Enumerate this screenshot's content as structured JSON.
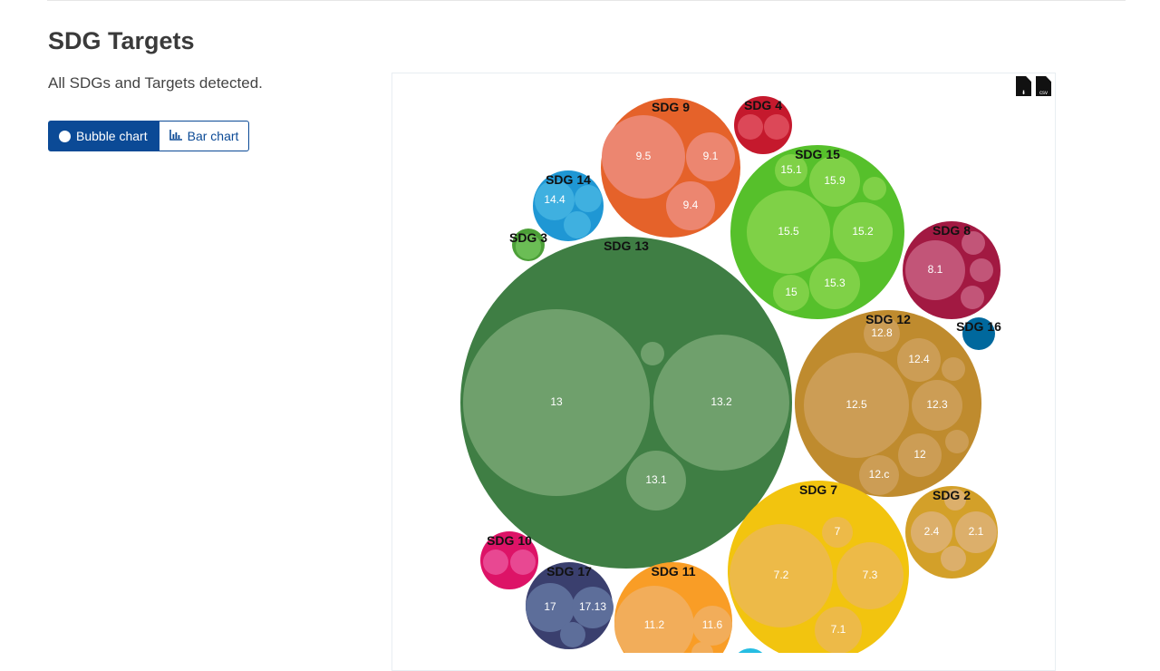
{
  "header": {
    "title": "SDG Targets",
    "subtitle": "All SDGs and Targets detected."
  },
  "view_toggle": {
    "bubble_label": "Bubble chart",
    "bar_label": "Bar chart",
    "selected": "Bubble chart"
  },
  "export": {
    "download_icon": "file-download-icon",
    "csv_icon": "file-csv-icon",
    "csv_text": "csv"
  },
  "bubbles": [
    {
      "name": "SDG 9",
      "color": "#e5622a",
      "inner_color": "#ec8670",
      "targets": [
        "9.5",
        "9.1",
        "9.4"
      ]
    },
    {
      "name": "SDG 4",
      "color": "#c5192d",
      "inner_color": "#dc4858",
      "targets": [
        "",
        ""
      ]
    },
    {
      "name": "SDG 15",
      "color": "#56c02b",
      "inner_color": "#7fd147",
      "targets": [
        "15.1",
        "15.9",
        "",
        "15.5",
        "15.2",
        "15",
        "15.3"
      ]
    },
    {
      "name": "SDG 14",
      "color": "#1f97d4",
      "inner_color": "#3fb0e0",
      "targets": [
        "14.4",
        "",
        ""
      ]
    },
    {
      "name": "SDG 3",
      "color": "#4c9f38",
      "inner_color": "#6bbd55",
      "targets": [
        ""
      ]
    },
    {
      "name": "SDG 13",
      "color": "#3f7e44",
      "inner_color": "#6fa06c",
      "targets": [
        "13",
        "13.2",
        "13.1",
        ""
      ]
    },
    {
      "name": "SDG 8",
      "color": "#a21942",
      "inner_color": "#c25578",
      "targets": [
        "8.1",
        "",
        "",
        ""
      ]
    },
    {
      "name": "SDG 16",
      "color": "#00689d",
      "inner_color": "#2a84bd",
      "targets": []
    },
    {
      "name": "SDG 12",
      "color": "#bf8b2e",
      "inner_color": "#cc9d55",
      "targets": [
        "12.8",
        "12.4",
        "12.5",
        "12.3",
        "12",
        "12.c",
        "",
        ""
      ]
    },
    {
      "name": "SDG 7",
      "color": "#f2c40f",
      "inner_color": "#edba48",
      "targets": [
        "7",
        "7.2",
        "7.3",
        "7.1"
      ]
    },
    {
      "name": "SDG 2",
      "color": "#d3a029",
      "inner_color": "#dcaf6b",
      "targets": [
        "2.4",
        "2.1",
        "",
        ""
      ]
    },
    {
      "name": "SDG 10",
      "color": "#dd1367",
      "inner_color": "#e84892",
      "targets": [
        "",
        ""
      ]
    },
    {
      "name": "SDG 17",
      "color": "#3a3f6e",
      "inner_color": "#5d6e9a",
      "targets": [
        "17",
        "17.13",
        ""
      ]
    },
    {
      "name": "SDG 11",
      "color": "#f99d26",
      "inner_color": "#f2ad5a",
      "targets": [
        "11.2",
        "11.6",
        ""
      ]
    },
    {
      "name": "",
      "color": "#26bde2",
      "inner_color": "#26bde2",
      "targets": []
    }
  ]
}
